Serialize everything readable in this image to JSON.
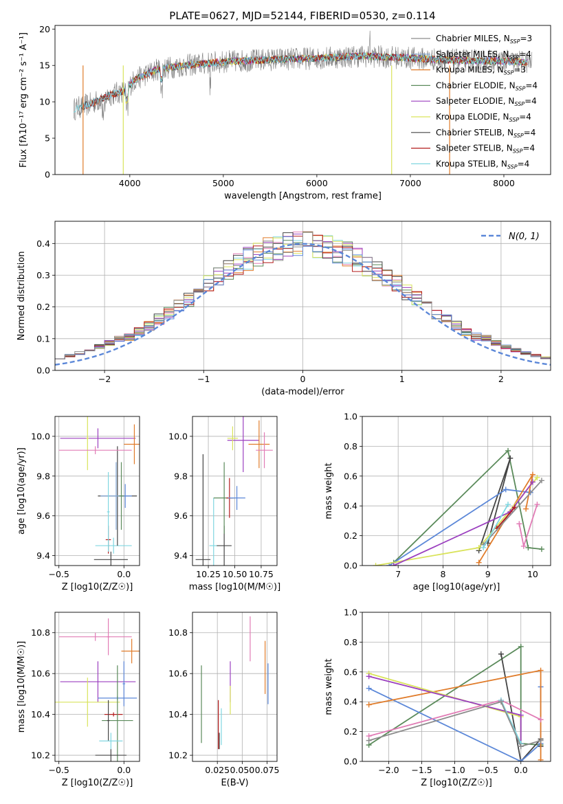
{
  "figure": {
    "title": "PLATE=0627, MJD=52144, FIBERID=0530, z=0.114"
  },
  "colors": {
    "Chabrier MILES": "#8c8c8c",
    "Salpeter MILES": "#84a9d8",
    "Kroupa MILES": "#e07b29",
    "Chabrier ELODIE": "#5a8a5a",
    "Salpeter ELODIE": "#9b3fbf",
    "Kroupa ELODIE": "#d9e35a",
    "Chabrier STELIB": "#444444",
    "Salpeter STELIB": "#b31b1b",
    "Kroupa STELIB": "#7fd6e0",
    "blue": "#5b87d8",
    "pink": "#e17bb5",
    "grid": "#b0b0b0"
  },
  "chart_data": [
    {
      "id": "spectrum",
      "type": "line",
      "xlabel": "wavelength [Angstrom, rest frame]",
      "ylabel": "Flux [fλ10⁻¹⁷ erg cm⁻² s⁻¹ A⁻¹]",
      "xlim": [
        3200,
        8500
      ],
      "ylim": [
        0,
        20.5
      ],
      "xticks": [
        4000,
        5000,
        6000,
        7000,
        8000
      ],
      "yticks": [
        0,
        5,
        10,
        15,
        20
      ],
      "grid": false,
      "legend_position": "right",
      "legend": [
        {
          "label": "Chabrier MILES, N_SSP=3",
          "text": "Chabrier MILES, N",
          "sub": "SSP",
          "tail": "=3",
          "color": "#8c8c8c"
        },
        {
          "label": "Salpeter MILES, N_SSP=4",
          "text": "Salpeter MILES, N",
          "sub": "SSP",
          "tail": "=4",
          "color": "#84a9d8"
        },
        {
          "label": "Kroupa MILES, N_SSP=3",
          "text": "Kroupa MILES, N",
          "sub": "SSP",
          "tail": "=3",
          "color": "#e07b29"
        },
        {
          "label": "Chabrier ELODIE, N_SSP=4",
          "text": "Chabrier ELODIE, N",
          "sub": "SSP",
          "tail": "=4",
          "color": "#5a8a5a"
        },
        {
          "label": "Salpeter ELODIE, N_SSP=4",
          "text": "Salpeter ELODIE, N",
          "sub": "SSP",
          "tail": "=4",
          "color": "#9b3fbf"
        },
        {
          "label": "Kroupa ELODIE, N_SSP=4",
          "text": "Kroupa ELODIE, N",
          "sub": "SSP",
          "tail": "=4",
          "color": "#d9e35a"
        },
        {
          "label": "Chabrier STELIB, N_SSP=4",
          "text": "Chabrier STELIB, N",
          "sub": "SSP",
          "tail": "=4",
          "color": "#444444"
        },
        {
          "label": "Salpeter STELIB, N_SSP=4",
          "text": "Salpeter STELIB, N",
          "sub": "SSP",
          "tail": "=4",
          "color": "#b31b1b"
        },
        {
          "label": "Kroupa STELIB, N_SSP=4",
          "text": "Kroupa STELIB, N",
          "sub": "SSP",
          "tail": "=4",
          "color": "#7fd6e0"
        }
      ],
      "continuum": {
        "x": [
          3400,
          3600,
          3800,
          3950,
          4050,
          4300,
          4600,
          5000,
          5500,
          6000,
          6500,
          7000,
          7500,
          8000,
          8300
        ],
        "y": [
          9.0,
          9.8,
          11.0,
          11.5,
          13.0,
          14.5,
          15.0,
          15.5,
          15.8,
          16.0,
          16.3,
          16.0,
          15.7,
          15.6,
          15.4
        ]
      },
      "fit_start": [
        3550,
        3500,
        3550,
        3950,
        3950,
        3950,
        3450,
        3500,
        3400
      ],
      "cut_lines": [
        {
          "x": 3930,
          "color": "#d9e35a"
        },
        {
          "x": 6800,
          "color": "#d9e35a"
        },
        {
          "x": 7420,
          "color": "#e07b29"
        },
        {
          "x": 3500,
          "color": "#e07b29"
        }
      ]
    },
    {
      "id": "residuals",
      "type": "histogram",
      "xlabel": "(data-model)/error",
      "ylabel": "Normed distribution",
      "xlim": [
        -2.5,
        2.5
      ],
      "ylim": [
        0,
        0.47
      ],
      "xticks": [
        -2,
        -1,
        0,
        1,
        2
      ],
      "yticks": [
        0,
        0.1,
        0.2,
        0.3,
        0.4
      ],
      "grid": true,
      "bin_width": 0.1,
      "legend_position": "top-right",
      "legend": [
        {
          "label": "N(0, 1)",
          "color": "#5b87d8"
        }
      ],
      "gaussian": {
        "mean": 0,
        "sigma": 1,
        "label": "N(0, 1)"
      }
    },
    {
      "id": "age_vs_Z",
      "type": "scatter",
      "xlabel": "Z [log10(Z/Z☉)]",
      "ylabel": "age  [log10(age/yr)]",
      "xlim": [
        -0.53,
        0.12
      ],
      "ylim": [
        9.35,
        10.1
      ],
      "xticks": [
        -0.5,
        0.0
      ],
      "yticks": [
        9.4,
        9.6,
        9.8,
        10.0
      ],
      "grid": true,
      "points": [
        {
          "x": -0.08,
          "y": 9.45,
          "xerr": 0.14,
          "yerr": 0.04,
          "color": "#7fd6e0"
        },
        {
          "x": -0.1,
          "y": 9.38,
          "xerr": 0.13,
          "yerr": 0.04,
          "color": "#444444"
        },
        {
          "x": -0.12,
          "y": 9.48,
          "xerr": 0.02,
          "yerr": 0.07,
          "color": "#b31b1b"
        },
        {
          "x": -0.05,
          "y": 9.7,
          "xerr": 0.15,
          "yerr": 0.25,
          "color": "#444444"
        },
        {
          "x": -0.06,
          "y": 9.7,
          "xerr": 0.12,
          "yerr": 0.17,
          "color": "#84a9d8"
        },
        {
          "x": 0.01,
          "y": 9.7,
          "xerr": 0.05,
          "yerr": 0.06,
          "color": "#5b87d8"
        },
        {
          "x": -0.02,
          "y": 9.7,
          "xerr": 0.02,
          "yerr": 0.17,
          "color": "#5a8a5a"
        },
        {
          "x": -0.2,
          "y": 9.99,
          "xerr": 0.29,
          "yerr": 0.05,
          "color": "#9b3fbf"
        },
        {
          "x": -0.28,
          "y": 9.99,
          "xerr": 0.01,
          "yerr": 0.16,
          "color": "#d9e35a"
        },
        {
          "x": -0.22,
          "y": 9.93,
          "xerr": 0.28,
          "yerr": 0.02,
          "color": "#e17bb5"
        },
        {
          "x": 0.08,
          "y": 9.96,
          "xerr": 0.08,
          "yerr": 0.1,
          "color": "#e07b29"
        },
        {
          "x": -0.12,
          "y": 9.62,
          "xerr": 0.01,
          "yerr": 0.2,
          "color": "#7fd6e0"
        }
      ]
    },
    {
      "id": "age_vs_mass",
      "type": "scatter",
      "xlabel": "mass [log10(M/M☉)]",
      "ylabel": "",
      "xlim": [
        10.1,
        10.9
      ],
      "ylim": [
        9.35,
        10.1
      ],
      "xticks": [
        10.25,
        10.5,
        10.75
      ],
      "yticks": [
        9.4,
        9.6,
        9.8,
        10.0
      ],
      "grid": true,
      "points": [
        {
          "x": 10.2,
          "y": 9.38,
          "xerr": 0.07,
          "yerr": 0.53,
          "color": "#444444"
        },
        {
          "x": 10.3,
          "y": 9.45,
          "xerr": 0.04,
          "yerr": 0.24,
          "color": "#7fd6e0"
        },
        {
          "x": 10.4,
          "y": 9.45,
          "xerr": 0.07,
          "yerr": 0.1,
          "color": "#444444"
        },
        {
          "x": 10.4,
          "y": 9.69,
          "xerr": 0.1,
          "yerr": 0.18,
          "color": "#5a8a5a"
        },
        {
          "x": 10.45,
          "y": 9.69,
          "xerr": 0.03,
          "yerr": 0.1,
          "color": "#b31b1b"
        },
        {
          "x": 10.52,
          "y": 9.69,
          "xerr": 0.08,
          "yerr": 0.06,
          "color": "#5b87d8"
        },
        {
          "x": 10.58,
          "y": 9.98,
          "xerr": 0.15,
          "yerr": 0.16,
          "color": "#9b3fbf"
        },
        {
          "x": 10.48,
          "y": 9.99,
          "xerr": 0.05,
          "yerr": 0.06,
          "color": "#d9e35a"
        },
        {
          "x": 10.73,
          "y": 9.96,
          "xerr": 0.1,
          "yerr": 0.12,
          "color": "#e07b29"
        },
        {
          "x": 10.78,
          "y": 9.93,
          "xerr": 0.08,
          "yerr": 0.09,
          "color": "#e17bb5"
        }
      ]
    },
    {
      "id": "mass_weight_vs_age",
      "type": "line",
      "xlabel": "age  [log10(age/yr)]",
      "ylabel": "mass weight",
      "xlim": [
        6.2,
        10.4
      ],
      "ylim": [
        0,
        1
      ],
      "xticks": [
        7,
        8,
        9,
        10
      ],
      "yticks": [
        0.0,
        0.2,
        0.4,
        0.6,
        0.8,
        1.0
      ],
      "grid": true,
      "series": [
        {
          "color": "#5a8a5a",
          "x": [
            6.9,
            9.45,
            9.9,
            10.2
          ],
          "y": [
            0.02,
            0.77,
            0.12,
            0.11
          ]
        },
        {
          "color": "#444444",
          "x": [
            8.8,
            9.5,
            9.0
          ],
          "y": [
            0.1,
            0.72,
            0.15
          ]
        },
        {
          "color": "#5b87d8",
          "x": [
            6.8,
            9.4,
            9.95
          ],
          "y": [
            0.0,
            0.51,
            0.49
          ]
        },
        {
          "color": "#e07b29",
          "x": [
            8.8,
            10.0,
            9.85
          ],
          "y": [
            0.02,
            0.61,
            0.38
          ]
        },
        {
          "color": "#d9e35a",
          "x": [
            6.5,
            8.8,
            10.1
          ],
          "y": [
            0.0,
            0.12,
            0.59
          ]
        },
        {
          "color": "#9b3fbf",
          "x": [
            6.9,
            9.5,
            10.0
          ],
          "y": [
            0.0,
            0.36,
            0.56
          ]
        },
        {
          "color": "#b31b1b",
          "x": [
            9.2,
            9.6
          ],
          "y": [
            0.25,
            0.39
          ]
        },
        {
          "color": "#e17bb5",
          "x": [
            9.7,
            9.8,
            10.1
          ],
          "y": [
            0.28,
            0.13,
            0.41
          ]
        },
        {
          "color": "#8c8c8c",
          "x": [
            8.9,
            10.2
          ],
          "y": [
            0.14,
            0.57
          ]
        },
        {
          "color": "#7fd6e0",
          "x": [
            8.9,
            9.45
          ],
          "y": [
            0.12,
            0.41
          ]
        }
      ]
    },
    {
      "id": "mass_vs_Z",
      "type": "scatter",
      "xlabel": "Z [log10(Z/Z☉)]",
      "ylabel": "mass [log10(M/M☉)]",
      "xlim": [
        -0.53,
        0.12
      ],
      "ylim": [
        10.17,
        10.9
      ],
      "xticks": [
        -0.5,
        0.0
      ],
      "yticks": [
        10.2,
        10.4,
        10.6,
        10.8
      ],
      "grid": true,
      "points": [
        {
          "x": -0.22,
          "y": 10.78,
          "xerr": 0.28,
          "yerr": 0.02,
          "color": "#e17bb5"
        },
        {
          "x": -0.12,
          "y": 10.78,
          "xerr": 0.01,
          "yerr": 0.09,
          "color": "#e17bb5"
        },
        {
          "x": 0.06,
          "y": 10.71,
          "xerr": 0.08,
          "yerr": 0.06,
          "color": "#e07b29"
        },
        {
          "x": -0.2,
          "y": 10.56,
          "xerr": 0.29,
          "yerr": 0.1,
          "color": "#9b3fbf"
        },
        {
          "x": -0.05,
          "y": 10.48,
          "xerr": 0.15,
          "yerr": 0.01,
          "color": "#5b87d8"
        },
        {
          "x": 0.0,
          "y": 10.55,
          "xerr": 0.01,
          "yerr": 0.11,
          "color": "#5b87d8"
        },
        {
          "x": -0.28,
          "y": 10.46,
          "xerr": 0.25,
          "yerr": 0.12,
          "color": "#d9e35a"
        },
        {
          "x": -0.08,
          "y": 10.4,
          "xerr": 0.07,
          "yerr": 0.01,
          "color": "#b31b1b"
        },
        {
          "x": -0.05,
          "y": 10.37,
          "xerr": 0.12,
          "yerr": 0.27,
          "color": "#5a8a5a"
        },
        {
          "x": -0.12,
          "y": 10.37,
          "xerr": 0.01,
          "yerr": 0.1,
          "color": "#444444"
        },
        {
          "x": -0.1,
          "y": 10.27,
          "xerr": 0.09,
          "yerr": 0.04,
          "color": "#7fd6e0"
        },
        {
          "x": -0.1,
          "y": 10.2,
          "xerr": 0.12,
          "yerr": 0.03,
          "color": "#444444"
        }
      ]
    },
    {
      "id": "mass_vs_EBV",
      "type": "scatter",
      "xlabel": "E(B-V)",
      "ylabel": "",
      "xlim": [
        0.0,
        0.085
      ],
      "ylim": [
        10.17,
        10.9
      ],
      "xticks": [
        0.025,
        0.05,
        0.075
      ],
      "yticks": [
        10.2,
        10.4,
        10.6,
        10.8
      ],
      "grid": true,
      "points": [
        {
          "x": 0.009,
          "y": 10.45,
          "xerr": 0.0,
          "yerr": 0.19,
          "color": "#5a8a5a"
        },
        {
          "x": 0.026,
          "y": 10.35,
          "xerr": 0.0,
          "yerr": 0.12,
          "color": "#b31b1b"
        },
        {
          "x": 0.027,
          "y": 10.27,
          "xerr": 0.0,
          "yerr": 0.04,
          "color": "#444444"
        },
        {
          "x": 0.029,
          "y": 10.34,
          "xerr": 0.0,
          "yerr": 0.09,
          "color": "#7fd6e0"
        },
        {
          "x": 0.038,
          "y": 10.56,
          "xerr": 0.0,
          "yerr": 0.1,
          "color": "#9b3fbf"
        },
        {
          "x": 0.038,
          "y": 10.47,
          "xerr": 0.0,
          "yerr": 0.07,
          "color": "#d9e35a"
        },
        {
          "x": 0.058,
          "y": 10.77,
          "xerr": 0.0,
          "yerr": 0.11,
          "color": "#e17bb5"
        },
        {
          "x": 0.073,
          "y": 10.63,
          "xerr": 0.0,
          "yerr": 0.13,
          "color": "#e07b29"
        },
        {
          "x": 0.076,
          "y": 10.55,
          "xerr": 0.0,
          "yerr": 0.1,
          "color": "#5b87d8"
        }
      ]
    },
    {
      "id": "mass_weight_vs_Z",
      "type": "line",
      "xlabel": "Z [log10(Z/Z☉)]",
      "ylabel": "mass weight",
      "xlim": [
        -2.4,
        0.45
      ],
      "ylim": [
        0,
        1
      ],
      "xticks": [
        -2.0,
        -1.5,
        -1.0,
        -0.5,
        0.0
      ],
      "yticks": [
        0.0,
        0.2,
        0.4,
        0.6,
        0.8,
        1.0
      ],
      "grid": true,
      "series": [
        {
          "color": "#5a8a5a",
          "x": [
            -2.3,
            0.0,
            0.0,
            0.3
          ],
          "y": [
            0.11,
            0.77,
            0.12,
            0.11
          ]
        },
        {
          "color": "#444444",
          "x": [
            -0.3,
            0.0,
            0.3,
            0.3
          ],
          "y": [
            0.72,
            0.0,
            0.15,
            0.1
          ]
        },
        {
          "color": "#5b87d8",
          "x": [
            -2.3,
            0.0,
            0.3,
            0.3
          ],
          "y": [
            0.49,
            0.0,
            0.12,
            0.5
          ]
        },
        {
          "color": "#e07b29",
          "x": [
            -2.3,
            0.3,
            0.3
          ],
          "y": [
            0.38,
            0.61,
            0.01
          ]
        },
        {
          "color": "#d9e35a",
          "x": [
            -2.3,
            0.0,
            0.0
          ],
          "y": [
            0.59,
            0.3,
            0.12
          ]
        },
        {
          "color": "#9b3fbf",
          "x": [
            -2.3,
            0.0,
            0.0
          ],
          "y": [
            0.57,
            0.31,
            0.12
          ]
        },
        {
          "color": "#e17bb5",
          "x": [
            -2.3,
            -0.3,
            0.3
          ],
          "y": [
            0.17,
            0.41,
            0.28
          ]
        },
        {
          "color": "#7fd6e0",
          "x": [
            -0.3,
            0.0
          ],
          "y": [
            0.41,
            0.12
          ]
        },
        {
          "color": "#8c8c8c",
          "x": [
            -2.3,
            -0.3,
            0.0,
            0.3
          ],
          "y": [
            0.14,
            0.4,
            0.1,
            0.14
          ]
        }
      ]
    }
  ]
}
